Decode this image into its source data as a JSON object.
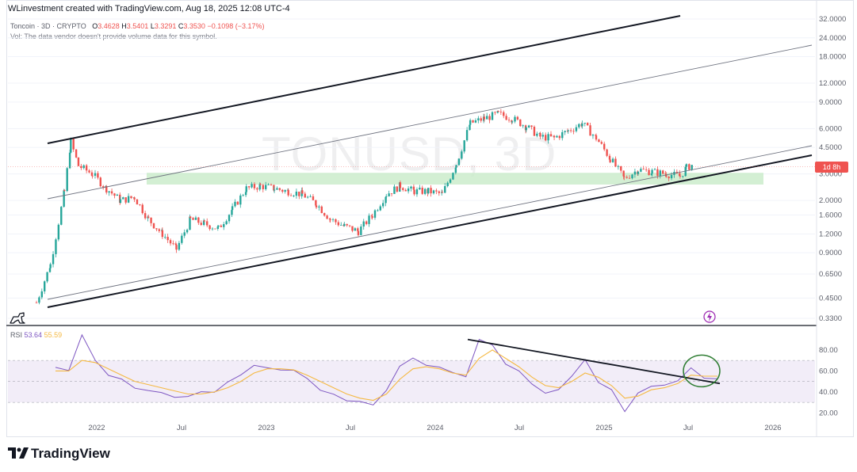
{
  "header": {
    "credit": "WLinvestment created with TradingView.com, Aug 18, 2025 12:08 UTC-4",
    "symbol": "Toncoin · 3D · CRYPTO",
    "o_label": "O",
    "o_value": "3.4628",
    "h_label": "H",
    "h_value": "3.5401",
    "l_label": "L",
    "l_value": "3.3291",
    "c_label": "C",
    "c_value": "3.3530",
    "change": "−0.1098 (−3.17%)",
    "vol_note": "Vol: The data vendor doesn't provide volume data for this symbol."
  },
  "watermark": "TONUSD, 3D",
  "price_badge": "1d 8h",
  "rsi": {
    "label": "RSI",
    "value": "53.64",
    "ma_value": "55.59"
  },
  "branding": "TradingView",
  "colors": {
    "up": "#26a69a",
    "down": "#ef5350",
    "rsi": "#7e57c2",
    "rsi_ma": "#f5b942",
    "zone": "#c8ebc8"
  },
  "chart_data": [
    {
      "type": "candlestick",
      "scale": "log",
      "ylim": [
        0.33,
        32.0
      ],
      "price_ticks": [
        "32.0000",
        "24.0000",
        "18.0000",
        "12.0000",
        "9.0000",
        "6.0000",
        "4.5000",
        "3.0000",
        "2.0000",
        "1.6000",
        "1.2000",
        "0.9000",
        "0.6500",
        "0.4500",
        "0.3300"
      ],
      "x_ticks": [
        "2022",
        "Jul",
        "2023",
        "Jul",
        "2024",
        "Jul",
        "2025",
        "Jul",
        "2026"
      ],
      "last_close": 3.353,
      "support_zone": [
        2.55,
        3.05
      ],
      "series": [
        {
          "x": "2021-09",
          "y": 0.42
        },
        {
          "x": "2021-10",
          "y": 0.75
        },
        {
          "x": "2021-11",
          "y": 2.3
        },
        {
          "x": "2021-11",
          "y": 4.9
        },
        {
          "x": "2021-12",
          "y": 3.4
        },
        {
          "x": "2022-01",
          "y": 3.0
        },
        {
          "x": "2022-02",
          "y": 2.4
        },
        {
          "x": "2022-03",
          "y": 2.0
        },
        {
          "x": "2022-04",
          "y": 2.1
        },
        {
          "x": "2022-05",
          "y": 1.5
        },
        {
          "x": "2022-06",
          "y": 1.2
        },
        {
          "x": "2022-07",
          "y": 0.95
        },
        {
          "x": "2022-08",
          "y": 1.5
        },
        {
          "x": "2022-09",
          "y": 1.4
        },
        {
          "x": "2022-10",
          "y": 1.3
        },
        {
          "x": "2022-11",
          "y": 1.75
        },
        {
          "x": "2022-12",
          "y": 2.4
        },
        {
          "x": "2023-01",
          "y": 2.5
        },
        {
          "x": "2023-02",
          "y": 2.4
        },
        {
          "x": "2023-03",
          "y": 2.3
        },
        {
          "x": "2023-04",
          "y": 2.2
        },
        {
          "x": "2023-05",
          "y": 1.9
        },
        {
          "x": "2023-06",
          "y": 1.5
        },
        {
          "x": "2023-07",
          "y": 1.35
        },
        {
          "x": "2023-08",
          "y": 1.25
        },
        {
          "x": "2023-09",
          "y": 1.6
        },
        {
          "x": "2023-10",
          "y": 2.2
        },
        {
          "x": "2023-11",
          "y": 2.5
        },
        {
          "x": "2023-12",
          "y": 2.3
        },
        {
          "x": "2024-01",
          "y": 2.3
        },
        {
          "x": "2024-02",
          "y": 2.2
        },
        {
          "x": "2024-03",
          "y": 3.5
        },
        {
          "x": "2024-04",
          "y": 6.5
        },
        {
          "x": "2024-05",
          "y": 7.0
        },
        {
          "x": "2024-06",
          "y": 7.5
        },
        {
          "x": "2024-07",
          "y": 7.0
        },
        {
          "x": "2024-08",
          "y": 6.2
        },
        {
          "x": "2024-09",
          "y": 5.3
        },
        {
          "x": "2024-10",
          "y": 5.2
        },
        {
          "x": "2024-11",
          "y": 5.8
        },
        {
          "x": "2024-12",
          "y": 6.5
        },
        {
          "x": "2025-01",
          "y": 5.2
        },
        {
          "x": "2025-02",
          "y": 3.8
        },
        {
          "x": "2025-03",
          "y": 2.8
        },
        {
          "x": "2025-04",
          "y": 3.2
        },
        {
          "x": "2025-05",
          "y": 3.1
        },
        {
          "x": "2025-06",
          "y": 3.0
        },
        {
          "x": "2025-07",
          "y": 2.9
        },
        {
          "x": "2025-07",
          "y": 3.3
        },
        {
          "x": "2025-08",
          "y": 3.5
        }
      ]
    },
    {
      "type": "line",
      "title": "RSI",
      "ylim": [
        15,
        95
      ],
      "y_ticks": [
        "80.00",
        "60.00",
        "40.00",
        "20.00"
      ],
      "bands": [
        30,
        50,
        70
      ],
      "series": [
        {
          "name": "RSI",
          "values": [
            62,
            60,
            92,
            70,
            58,
            50,
            45,
            44,
            40,
            36,
            34,
            38,
            42,
            48,
            55,
            68,
            64,
            62,
            60,
            50,
            44,
            40,
            34,
            31,
            30,
            44,
            62,
            70,
            66,
            62,
            56,
            55,
            90,
            84,
            66,
            60,
            48,
            40,
            44,
            54,
            68,
            52,
            40,
            24,
            40,
            46,
            44,
            50,
            62,
            56,
            54
          ]
        },
        {
          "name": "MA",
          "values": [
            60,
            60,
            70,
            68,
            62,
            56,
            50,
            47,
            44,
            41,
            38,
            38,
            40,
            44,
            50,
            58,
            62,
            62,
            61,
            56,
            50,
            44,
            38,
            34,
            32,
            38,
            52,
            62,
            64,
            62,
            58,
            56,
            72,
            80,
            72,
            64,
            54,
            46,
            44,
            50,
            58,
            54,
            46,
            34,
            36,
            42,
            44,
            48,
            56,
            55,
            55
          ]
        }
      ]
    }
  ]
}
